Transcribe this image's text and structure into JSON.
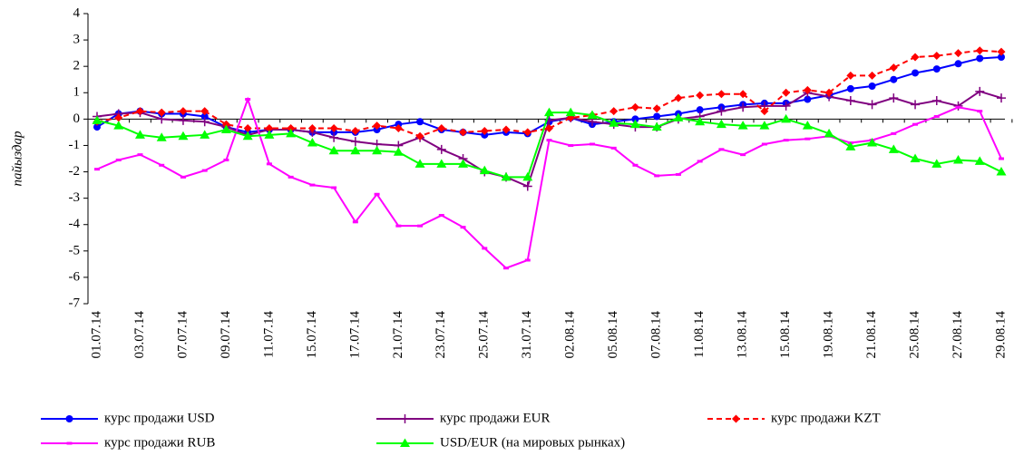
{
  "chart_data": {
    "type": "line",
    "ylabel": "пайыздар",
    "categories": [
      "01.07.14",
      null,
      "03.07.14",
      null,
      "07.07.14",
      null,
      "09.07.14",
      null,
      "11.07.14",
      null,
      "15.07.14",
      null,
      "17.07.14",
      null,
      "21.07.14",
      null,
      "23.07.14",
      null,
      "25.07.14",
      null,
      "31.07.14",
      null,
      "02.08.14",
      null,
      "05.08.14",
      null,
      "07.08.14",
      null,
      "11.08.14",
      null,
      "13.08.14",
      null,
      "15.08.14",
      null,
      "19.08.14",
      null,
      "21.08.14",
      null,
      "25.08.14",
      null,
      "27.08.14",
      null,
      "29.08.14"
    ],
    "ylim": [
      -7,
      4
    ],
    "yticks": [
      -7,
      -6,
      -5,
      -4,
      -3,
      -2,
      -1,
      0,
      1,
      2,
      3,
      4
    ],
    "legend": "bottom",
    "series": [
      {
        "name": "курс продажи USD",
        "color": "#0000ff",
        "marker": "circle",
        "values": [
          -0.3,
          0.2,
          0.3,
          0.2,
          0.2,
          0.1,
          -0.3,
          -0.5,
          -0.4,
          -0.4,
          -0.5,
          -0.5,
          -0.5,
          -0.4,
          -0.2,
          -0.1,
          -0.4,
          -0.5,
          -0.6,
          -0.5,
          -0.55,
          -0.1,
          0.05,
          -0.2,
          -0.1,
          0,
          0.1,
          0.2,
          0.35,
          0.45,
          0.55,
          0.6,
          0.6,
          0.75,
          0.9,
          1.15,
          1.25,
          1.5,
          1.75,
          1.9,
          2.1,
          2.3,
          2.35
        ]
      },
      {
        "name": "курс продажи EUR",
        "color": "#800080",
        "marker": "plus",
        "values": [
          0.1,
          0.2,
          0.25,
          0,
          -0.05,
          -0.1,
          -0.3,
          -0.6,
          -0.4,
          -0.4,
          -0.5,
          -0.7,
          -0.85,
          -0.95,
          -1.0,
          -0.7,
          -1.15,
          -1.5,
          -2.0,
          -2.2,
          -2.55,
          -0.05,
          0.05,
          -0.1,
          -0.2,
          -0.3,
          -0.3,
          0,
          0.1,
          0.3,
          0.45,
          0.5,
          0.5,
          1.0,
          0.85,
          0.7,
          0.55,
          0.8,
          0.55,
          0.7,
          0.5,
          1.05,
          0.8
        ]
      },
      {
        "name": "курс продажи KZT",
        "color": "#ff0000",
        "marker": "diamond",
        "dashed": true,
        "values": [
          -0.1,
          0.05,
          0.3,
          0.25,
          0.3,
          0.3,
          -0.2,
          -0.35,
          -0.35,
          -0.35,
          -0.35,
          -0.35,
          -0.45,
          -0.25,
          -0.35,
          -0.65,
          -0.35,
          -0.5,
          -0.45,
          -0.4,
          -0.5,
          -0.35,
          0.05,
          0.15,
          0.3,
          0.45,
          0.4,
          0.8,
          0.9,
          0.95,
          0.95,
          0.3,
          1.0,
          1.1,
          1.0,
          1.65,
          1.65,
          1.95,
          2.35,
          2.4,
          2.5,
          2.6,
          2.55
        ]
      },
      {
        "name": "курс продажи RUB",
        "color": "#ff00ff",
        "marker": "dash",
        "values": [
          -1.9,
          -1.55,
          -1.35,
          -1.75,
          -2.2,
          -1.95,
          -1.55,
          0.75,
          -1.7,
          -2.2,
          -2.5,
          -2.6,
          -3.9,
          -2.85,
          -4.05,
          -4.05,
          -3.65,
          -4.1,
          -4.9,
          -5.65,
          -5.35,
          -0.8,
          -1.0,
          -0.95,
          -1.1,
          -1.75,
          -2.15,
          -2.1,
          -1.6,
          -1.15,
          -1.35,
          -0.95,
          -0.8,
          -0.75,
          -0.65,
          -0.9,
          -0.8,
          -0.55,
          -0.2,
          0.1,
          0.45,
          0.3,
          -1.5
        ]
      },
      {
        "name": "USD/EUR (на мировых рынках)",
        "color": "#00ff00",
        "marker": "triangle",
        "values": [
          -0.05,
          -0.25,
          -0.6,
          -0.7,
          -0.65,
          -0.6,
          -0.4,
          -0.65,
          -0.6,
          -0.55,
          -0.9,
          -1.2,
          -1.2,
          -1.2,
          -1.25,
          -1.7,
          -1.7,
          -1.7,
          -1.95,
          -2.2,
          -2.2,
          0.25,
          0.25,
          0.15,
          -0.15,
          -0.2,
          -0.3,
          0.05,
          -0.1,
          -0.2,
          -0.25,
          -0.25,
          0,
          -0.25,
          -0.55,
          -1.05,
          -0.9,
          -1.15,
          -1.5,
          -1.7,
          -1.55,
          -1.6,
          -2.0
        ]
      }
    ]
  }
}
